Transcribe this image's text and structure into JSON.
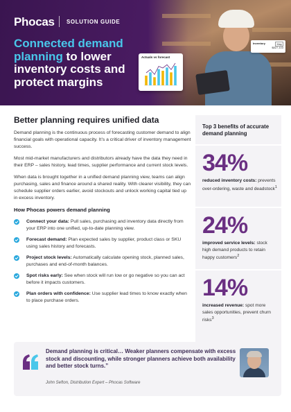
{
  "header": {
    "logo": "Phocas",
    "label": "SOLUTION GUIDE",
    "title_accent": "Connected demand planning",
    "title_rest": " to lower inventory costs and protect margins"
  },
  "hero_widgets": {
    "chart_title": "Actuals vs forecast",
    "chart_bar_values": [
      3,
      4,
      2.5,
      5,
      4.5,
      5.5,
      4,
      6
    ],
    "inventory_label": "Inventory",
    "inventory_month": "May",
    "inventory_value": "$827,103"
  },
  "main": {
    "title": "Better planning requires unified data",
    "paragraphs": [
      "Demand planning is the continuous process of forecasting customer demand to align financial goals with operational capacity. It’s a critical driver of inventory management success.",
      "Most mid-market manufacturers and distributors already have the data they need in their ERP – sales history, lead times, supplier performance and current stock levels.",
      "When data is brought together in a unified demand planning view, teams can align purchasing, sales and finance around a shared reality. With clearer visibility, they can schedule supplier orders earlier, avoid stockouts and unlock working capital tied up in excess inventory."
    ],
    "subtitle": "How Phocas powers demand planning",
    "items": [
      {
        "title": "Connect your data:",
        "text": " Pull sales, purchasing and inventory data directly from your ERP into one unified, up-to-date planning view."
      },
      {
        "title": "Forecast demand:",
        "text": " Plan expected sales by supplier, product class or SKU using sales history and forecasts."
      },
      {
        "title": "Project stock levels:",
        "text": " Automatically calculate opening stock, planned sales, purchases and end-of-month balances."
      },
      {
        "title": "Spot risks early:",
        "text": " See when stock will run low or go negative so you can act before it impacts customers."
      },
      {
        "title": "Plan orders with confidence:",
        "text": " Use supplier lead times to know exactly when to place purchase orders."
      }
    ]
  },
  "sidebar": {
    "title": "Top 3 benefits of accurate demand planning",
    "stats": [
      {
        "number": "34%",
        "label": "reduced inventory costs:",
        "text": " prevents over-ordering, waste and deadstock",
        "ref": "1"
      },
      {
        "number": "24%",
        "label": "improved service levels:",
        "text": " stock high demand products to retain happy customers",
        "ref": "2"
      },
      {
        "number": "14%",
        "label": "increased revenue:",
        "text": " spot more sales opportunities, prevent churn risks",
        "ref": "3"
      }
    ]
  },
  "quote": {
    "text": "Demand planning is critical… Weaker planners compensate with excess stock and discounting, while stronger planners achieve both availability and better stock turns.”",
    "author": "John Sefton, Distribution Expert – Phocas Software"
  },
  "colors": {
    "hero_bg": "#4b1c63",
    "accent_blue": "#49c7ea",
    "stat_purple": "#6a2f82",
    "check_blue": "#29a8dd",
    "panel_bg": "#f4f3f6"
  }
}
